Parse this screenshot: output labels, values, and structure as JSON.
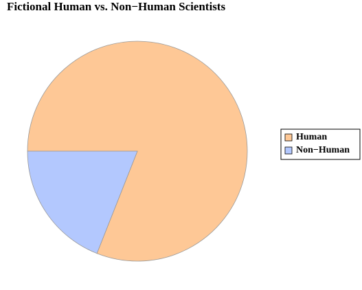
{
  "chart_data": {
    "type": "pie",
    "title": "Fictional Human vs. Non−Human Scientists",
    "categories": [
      "Human",
      "Non−Human"
    ],
    "values": [
      81,
      19
    ],
    "colors": [
      "#fec896",
      "#b3c8fe"
    ],
    "legend": "right"
  }
}
